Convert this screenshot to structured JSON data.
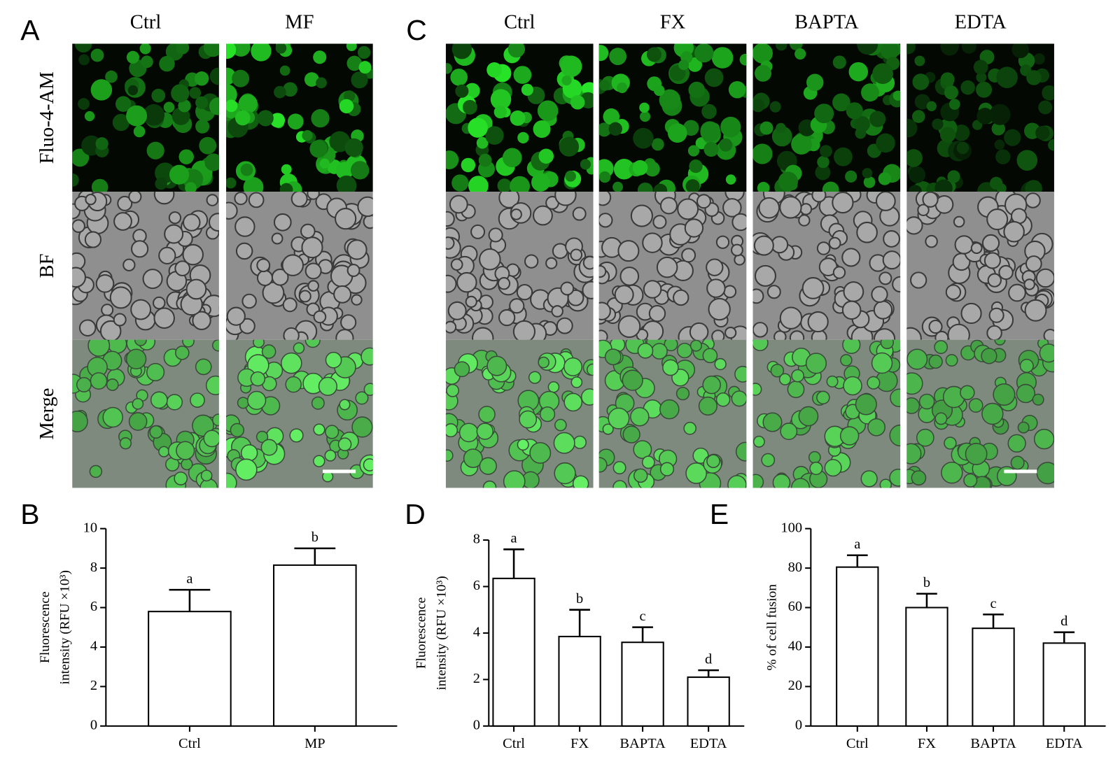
{
  "panels": [
    {
      "label": "A",
      "columns": [
        "Ctrl",
        "MF"
      ],
      "rows": [
        "Fluo-4-AM",
        "BF",
        "Merge"
      ]
    },
    {
      "label": "C",
      "columns": [
        "Ctrl",
        "FX",
        "BAPTA",
        "EDTA"
      ]
    }
  ],
  "chart_data": [
    {
      "type": "bar",
      "panel": "B",
      "y_label": [
        "Fluorescence",
        "intensity (RFU ×10³)"
      ],
      "categories": [
        "Ctrl",
        "MP"
      ],
      "values": [
        5.8,
        8.15
      ],
      "errors": [
        1.1,
        0.85
      ],
      "annotations": [
        "a",
        "b"
      ],
      "color": "#ffffff",
      "ylim": [
        0,
        10
      ],
      "yticks": [
        0,
        2,
        4,
        6,
        8,
        10
      ]
    },
    {
      "type": "bar",
      "panel": "D",
      "y_label": [
        "Fluorescence",
        "intensity (RFU ×10³)"
      ],
      "categories": [
        "Ctrl",
        "FX",
        "BAPTA",
        "EDTA"
      ],
      "values": [
        6.35,
        3.85,
        3.6,
        2.1
      ],
      "errors": [
        1.25,
        1.15,
        0.65,
        0.3
      ],
      "annotations": [
        "a",
        "b",
        "c",
        "d"
      ],
      "color": "#ffffff",
      "ylim": [
        0,
        8
      ],
      "yticks": [
        0,
        2,
        4,
        6,
        8
      ]
    },
    {
      "type": "bar",
      "panel": "E",
      "y_label": [
        "% of cell fusion"
      ],
      "categories": [
        "Ctrl",
        "FX",
        "BAPTA",
        "EDTA"
      ],
      "values": [
        80.5,
        60,
        49.5,
        42
      ],
      "errors": [
        6,
        7,
        7,
        5.5
      ],
      "annotations": [
        "a",
        "b",
        "c",
        "d"
      ],
      "color": "#ffffff",
      "ylim": [
        0,
        100
      ],
      "yticks": [
        0,
        20,
        40,
        60,
        80,
        100
      ]
    }
  ]
}
